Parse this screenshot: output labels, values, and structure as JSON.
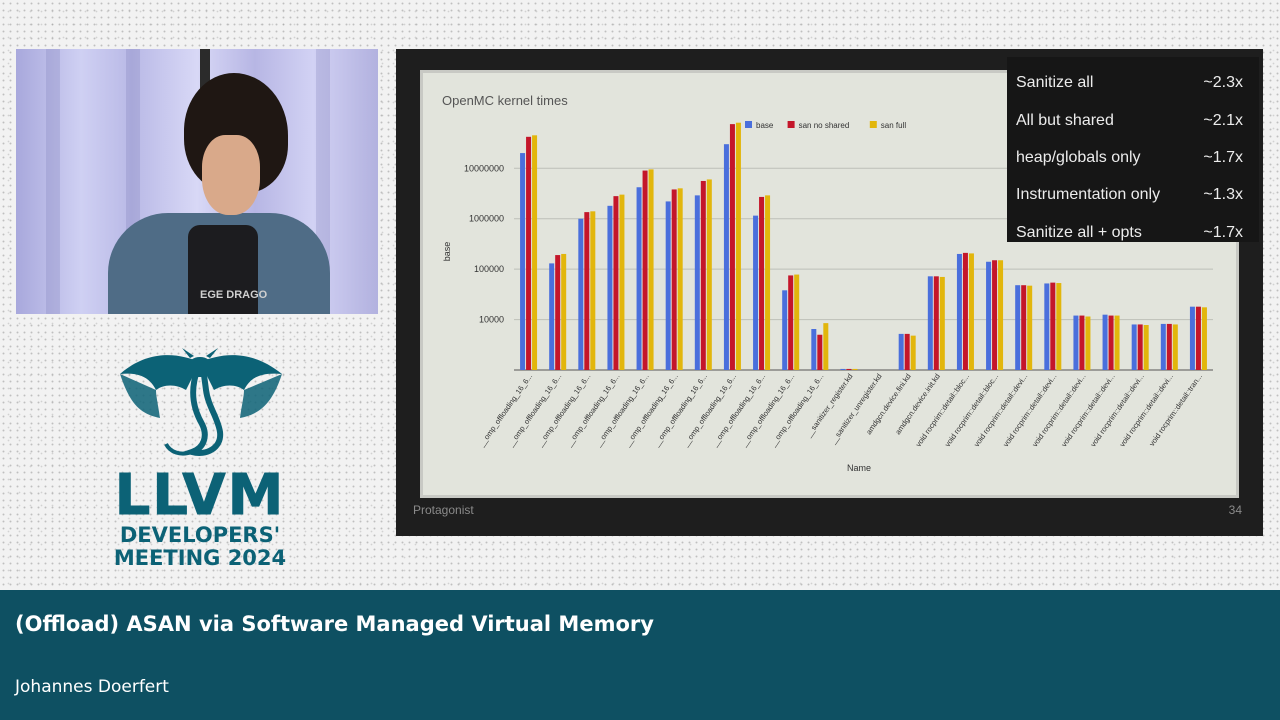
{
  "banner": {
    "title": "(Offload) ASAN via Software Managed Virtual Memory",
    "speaker": "Johannes Doerfert"
  },
  "logo": {
    "name": "LLVM",
    "line1": "DEVELOPERS'",
    "line2": "MEETING 2024"
  },
  "video": {
    "shirt_text": "EGE DRAGO"
  },
  "slide": {
    "footer_left": "Protagonist",
    "page_number": "34",
    "stats": [
      {
        "label": "Sanitize all",
        "value": "~2.3x"
      },
      {
        "label": "All but shared",
        "value": "~2.1x"
      },
      {
        "label": "heap/globals only",
        "value": "~1.7x"
      },
      {
        "label": "Instrumentation only",
        "value": "~1.3x"
      },
      {
        "label": "Sanitize all + opts",
        "value": "~1.7x"
      }
    ]
  },
  "chart_data": {
    "type": "bar",
    "title": "OpenMC kernel times",
    "xlabel": "Name",
    "ylabel": "base",
    "yscale": "log",
    "ylim": [
      1000,
      50000000
    ],
    "yticks": [
      10000,
      100000,
      1000000,
      10000000
    ],
    "ytick_labels": [
      "10000",
      "100000",
      "1000000",
      "10000000"
    ],
    "legend_position": "top-center",
    "grid": true,
    "categories": [
      "__omp_offloading_16_6...",
      "__omp_offloading_16_6...",
      "__omp_offloading_16_6...",
      "__omp_offloading_16_6...",
      "__omp_offloading_16_6...",
      "__omp_offloading_16_6...",
      "__omp_offloading_16_6...",
      "__omp_offloading_16_6...",
      "__omp_offloading_16_6...",
      "__omp_offloading_16_6...",
      "__omp_offloading_16_6...",
      "__sanitizer_register.kd",
      "__sanitizer_unregister.kd",
      "amdgcn.device.fini.kd",
      "amdgcn.device.init.kd",
      "void rocprim::detail::bloc...",
      "void rocprim::detail::bloc...",
      "void rocprim::detail::devi...",
      "void rocprim::detail::devi...",
      "void rocprim::detail::devi...",
      "void rocprim::detail::devi...",
      "void rocprim::detail::devi...",
      "void rocprim::detail::devi...",
      "void rocprim::detail::tran..."
    ],
    "series": [
      {
        "name": "base",
        "color": "#4a6fdc",
        "values": [
          20000000,
          130000,
          1000000,
          1800000,
          4200000,
          2200000,
          2900000,
          30000000,
          1150000,
          38000,
          6500,
          1050,
          null,
          5200,
          72000,
          200000,
          140000,
          48000,
          52000,
          12000,
          12500,
          8000,
          8200,
          18000
        ]
      },
      {
        "name": "san no shared",
        "color": "#c4162a",
        "values": [
          42000000,
          190000,
          1350000,
          2800000,
          9000000,
          3800000,
          5600000,
          75000000,
          2700000,
          75000,
          5000,
          1050,
          null,
          5200,
          72000,
          210000,
          150000,
          48000,
          54000,
          12000,
          12000,
          8000,
          8200,
          18000
        ]
      },
      {
        "name": "san full",
        "color": "#e2b60c",
        "values": [
          45000000,
          200000,
          1400000,
          3000000,
          9500000,
          4000000,
          6000000,
          80000000,
          2900000,
          78000,
          8500,
          1050,
          null,
          4800,
          70000,
          205000,
          150000,
          47000,
          53000,
          11500,
          12000,
          7800,
          8000,
          17500
        ]
      }
    ]
  }
}
